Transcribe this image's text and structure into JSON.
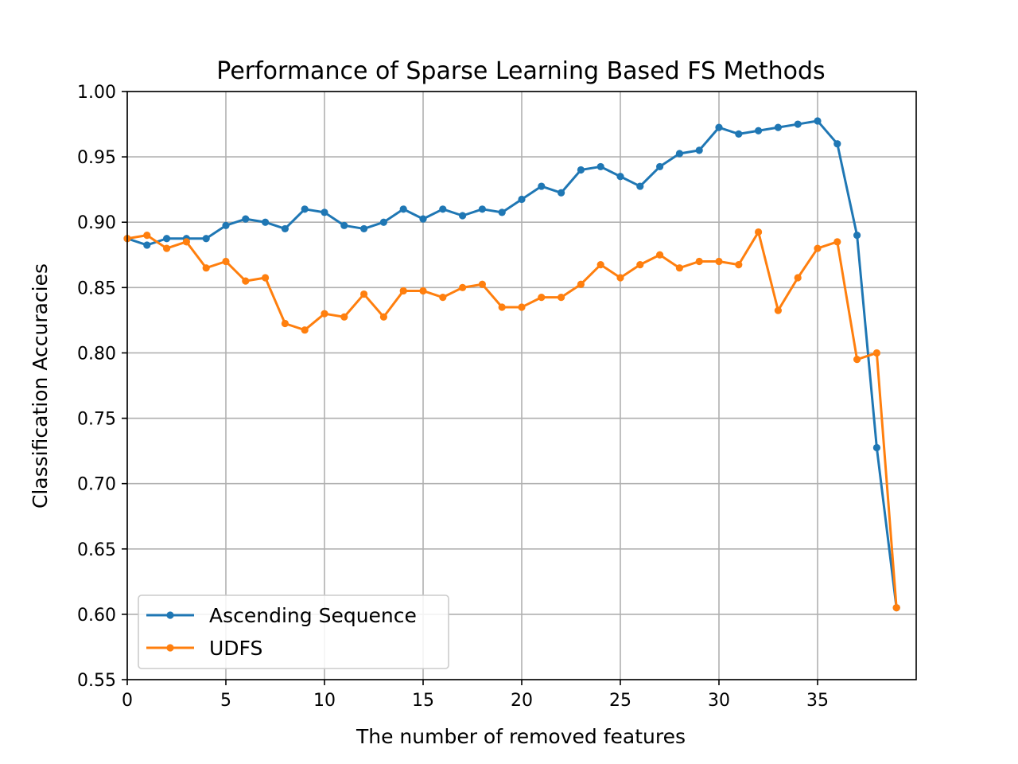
{
  "chart_data": {
    "type": "line",
    "title": "Performance of Sparse Learning Based FS Methods",
    "xlabel": "The number of removed features",
    "ylabel": "Classification Accuracies",
    "xlim": [
      0,
      40
    ],
    "ylim": [
      0.55,
      1.0
    ],
    "xticks": [
      0,
      5,
      10,
      15,
      20,
      25,
      30,
      35
    ],
    "yticks": [
      0.55,
      0.6,
      0.65,
      0.7,
      0.75,
      0.8,
      0.85,
      0.9,
      0.95,
      1.0
    ],
    "xtick_labels": [
      "0",
      "5",
      "10",
      "15",
      "20",
      "25",
      "30",
      "35"
    ],
    "ytick_labels": [
      "0.55",
      "0.60",
      "0.65",
      "0.70",
      "0.75",
      "0.80",
      "0.85",
      "0.90",
      "0.95",
      "1.00"
    ],
    "grid": true,
    "legend_position": "lower-left",
    "x": [
      0,
      1,
      2,
      3,
      4,
      5,
      6,
      7,
      8,
      9,
      10,
      11,
      12,
      13,
      14,
      15,
      16,
      17,
      18,
      19,
      20,
      21,
      22,
      23,
      24,
      25,
      26,
      27,
      28,
      29,
      30,
      31,
      32,
      33,
      34,
      35,
      36,
      37,
      38,
      39
    ],
    "series": [
      {
        "name": "Ascending Sequence",
        "color": "#1f77b4",
        "values": [
          0.8875,
          0.8825,
          0.8875,
          0.8875,
          0.8875,
          0.8975,
          0.9025,
          0.9,
          0.895,
          0.91,
          0.9075,
          0.8975,
          0.895,
          0.9,
          0.91,
          0.9025,
          0.91,
          0.905,
          0.91,
          0.9075,
          0.9175,
          0.9275,
          0.9225,
          0.94,
          0.9425,
          0.935,
          0.9275,
          0.9425,
          0.9525,
          0.955,
          0.9725,
          0.9675,
          0.97,
          0.9725,
          0.975,
          0.9775,
          0.96,
          0.89,
          0.7275,
          0.605
        ]
      },
      {
        "name": "UDFS",
        "color": "#ff7f0e",
        "values": [
          0.8875,
          0.89,
          0.88,
          0.885,
          0.865,
          0.87,
          0.855,
          0.8575,
          0.8225,
          0.8175,
          0.83,
          0.8275,
          0.845,
          0.8275,
          0.8475,
          0.8475,
          0.8425,
          0.85,
          0.8525,
          0.835,
          0.835,
          0.8425,
          0.8425,
          0.8525,
          0.8675,
          0.8575,
          0.8675,
          0.875,
          0.865,
          0.87,
          0.87,
          0.8675,
          0.8925,
          0.8325,
          0.8575,
          0.88,
          0.885,
          0.795,
          0.8,
          0.605
        ]
      }
    ]
  }
}
